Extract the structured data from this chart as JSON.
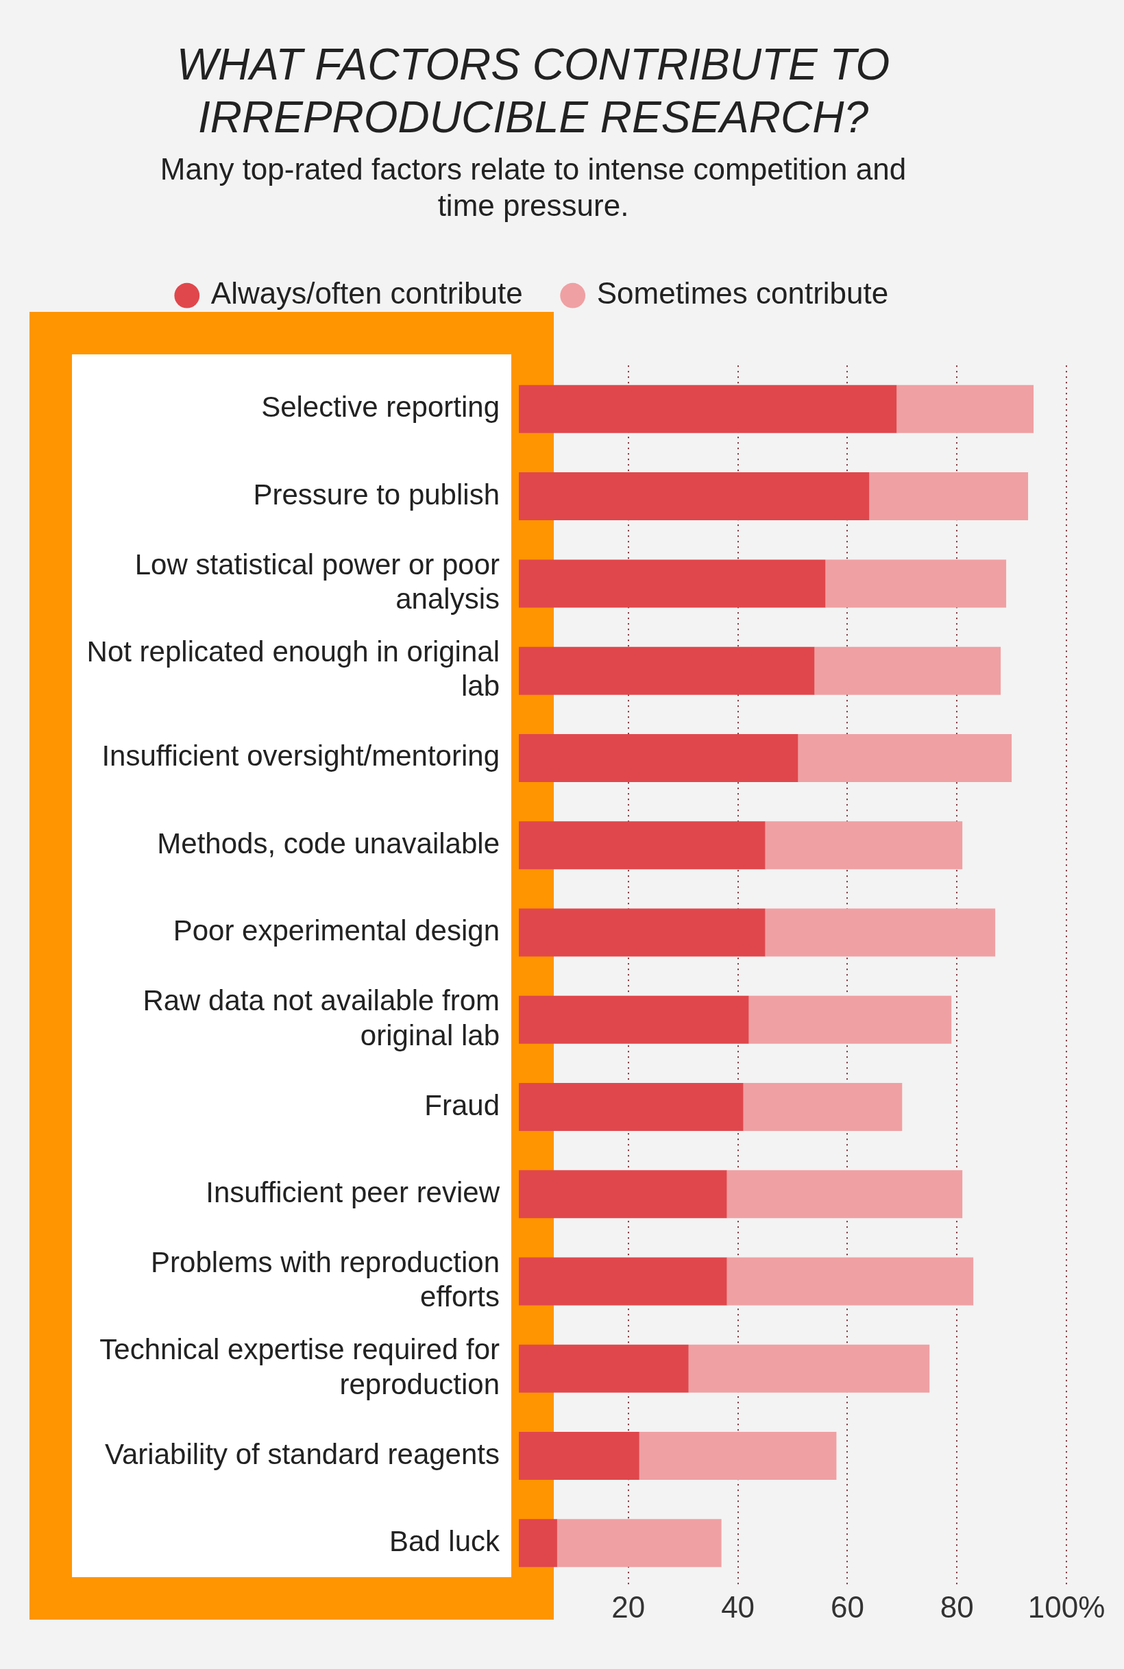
{
  "chart_data": {
    "type": "bar",
    "orientation": "horizontal",
    "stacked": true,
    "title": "WHAT FACTORS CONTRIBUTE TO IRREPRODUCIBLE RESEARCH?",
    "subtitle": "Many top-rated factors relate to intense competition and time pressure.",
    "categories": [
      "Selective reporting",
      "Pressure to publish",
      "Low statistical power or poor analysis",
      "Not replicated enough in original lab",
      "Insufficient oversight/mentoring",
      "Methods, code unavailable",
      "Poor experimental design",
      "Raw data not available from original lab",
      "Fraud",
      "Insufficient peer review",
      "Problems with reproduction efforts",
      "Technical expertise required for reproduction",
      "Variability of standard reagents",
      "Bad luck"
    ],
    "series": [
      {
        "name": "Always/often contribute",
        "color": "#e0474c",
        "values": [
          69,
          64,
          56,
          54,
          51,
          45,
          45,
          42,
          41,
          38,
          38,
          31,
          22,
          7
        ]
      },
      {
        "name": "Sometimes contribute",
        "color": "#efa0a3",
        "values": [
          25,
          29,
          33,
          34,
          39,
          36,
          42,
          37,
          29,
          43,
          45,
          44,
          36,
          30
        ]
      }
    ],
    "xlim": [
      0,
      100
    ],
    "xticks": [
      20,
      40,
      60,
      80,
      {
        "value": 100,
        "label": "100%"
      }
    ],
    "grid": "x",
    "legend": "top"
  }
}
